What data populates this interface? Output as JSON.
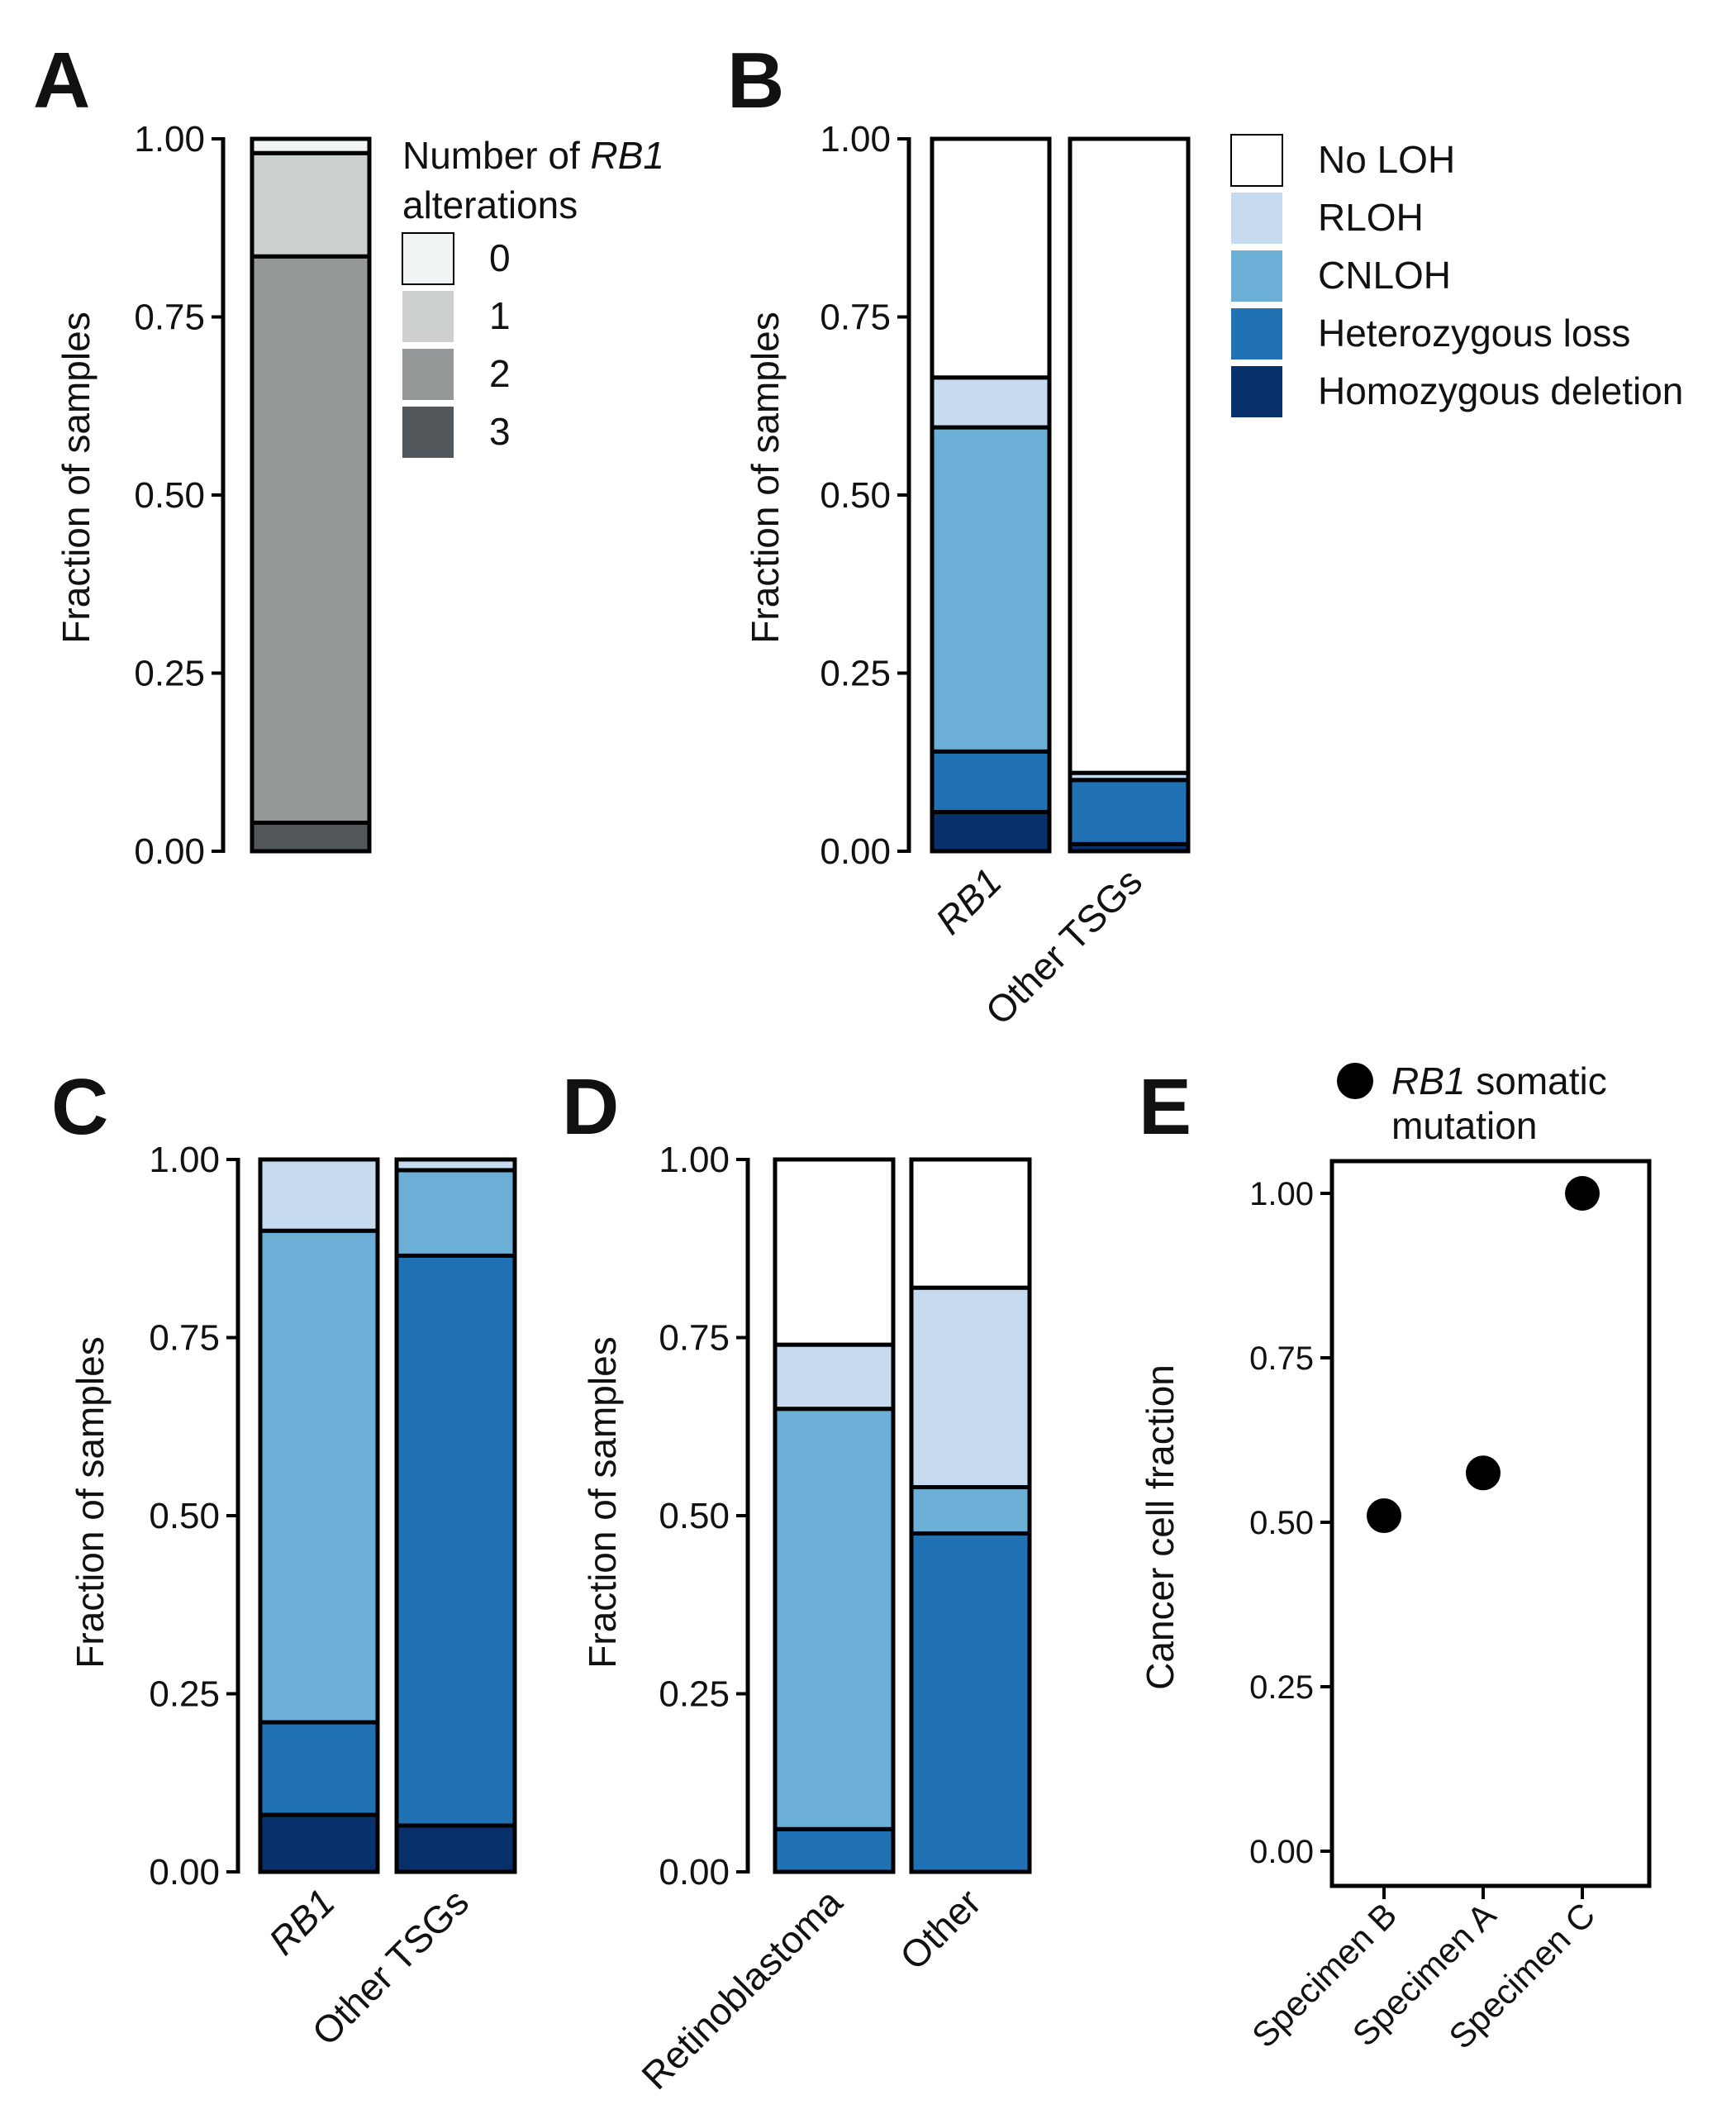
{
  "colors": {
    "no_loh": "#ffffff",
    "rloh": "#c6dbef",
    "cnloh": "#6baed6",
    "het_loss": "#2171b5",
    "hom_del": "#08306b",
    "alt0": "#f0f4f5",
    "alt1": "#cdd0d1",
    "alt2": "#949899",
    "alt3": "#50565a",
    "border": "#000000",
    "point": "#000000"
  },
  "chart_data": [
    {
      "panel": "A",
      "type": "bar",
      "stacked": true,
      "ylabel": "Fraction of samples",
      "ylim": [
        0,
        1
      ],
      "yticks": [
        "0.00",
        "0.25",
        "0.50",
        "0.75",
        "1.00"
      ],
      "categories": [
        ""
      ],
      "legend_title_pre": "Number of ",
      "legend_title_italic": "RB1",
      "legend_title_post": "alterations",
      "series": [
        {
          "name": "3",
          "color": "alt3",
          "values": [
            0.04
          ]
        },
        {
          "name": "2",
          "color": "alt2",
          "values": [
            0.795
          ]
        },
        {
          "name": "1",
          "color": "alt1",
          "values": [
            0.145
          ]
        },
        {
          "name": "0",
          "color": "alt0",
          "values": [
            0.02
          ]
        }
      ]
    },
    {
      "panel": "B",
      "type": "bar",
      "stacked": true,
      "ylabel": "Fraction of samples",
      "ylim": [
        0,
        1
      ],
      "yticks": [
        "0.00",
        "0.25",
        "0.50",
        "0.75",
        "1.00"
      ],
      "categories": [
        "RB1",
        "Other TSGs"
      ],
      "italic_categories": [
        "RB1"
      ],
      "legend": [
        "No LOH",
        "RLOH",
        "CNLOH",
        "Heterozygous loss",
        "Homozygous deletion"
      ],
      "series": [
        {
          "name": "Homozygous deletion",
          "color": "hom_del",
          "values": [
            0.055,
            0.01
          ]
        },
        {
          "name": "Heterozygous loss",
          "color": "het_loss",
          "values": [
            0.085,
            0.09
          ]
        },
        {
          "name": "CNLOH",
          "color": "cnloh",
          "values": [
            0.455,
            0.0
          ]
        },
        {
          "name": "RLOH",
          "color": "rloh",
          "values": [
            0.07,
            0.01
          ]
        },
        {
          "name": "No LOH",
          "color": "no_loh",
          "values": [
            0.335,
            0.89
          ]
        }
      ]
    },
    {
      "panel": "C",
      "type": "bar",
      "stacked": true,
      "ylabel": "Fraction of samples",
      "ylim": [
        0,
        1
      ],
      "yticks": [
        "0.00",
        "0.25",
        "0.50",
        "0.75",
        "1.00"
      ],
      "categories": [
        "RB1",
        "Other TSGs"
      ],
      "italic_categories": [
        "RB1"
      ],
      "series": [
        {
          "name": "Homozygous deletion",
          "color": "hom_del",
          "values": [
            0.08,
            0.065
          ]
        },
        {
          "name": "Heterozygous loss",
          "color": "het_loss",
          "values": [
            0.13,
            0.8
          ]
        },
        {
          "name": "CNLOH",
          "color": "cnloh",
          "values": [
            0.69,
            0.12
          ]
        },
        {
          "name": "RLOH",
          "color": "rloh",
          "values": [
            0.1,
            0.015
          ]
        }
      ]
    },
    {
      "panel": "D",
      "type": "bar",
      "stacked": true,
      "ylabel": "Fraction of samples",
      "ylim": [
        0,
        1
      ],
      "yticks": [
        "0.00",
        "0.25",
        "0.50",
        "0.75",
        "1.00"
      ],
      "categories": [
        "Retinoblastoma",
        "Other"
      ],
      "italic_categories": [],
      "series": [
        {
          "name": "Heterozygous loss",
          "color": "het_loss",
          "values": [
            0.06,
            0.475
          ]
        },
        {
          "name": "CNLOH",
          "color": "cnloh",
          "values": [
            0.59,
            0.065
          ]
        },
        {
          "name": "RLOH",
          "color": "rloh",
          "values": [
            0.09,
            0.28
          ]
        },
        {
          "name": "No LOH",
          "color": "no_loh",
          "values": [
            0.26,
            0.18
          ]
        }
      ]
    },
    {
      "panel": "E",
      "type": "scatter",
      "ylabel": "Cancer cell fraction",
      "ylim": [
        -0.05,
        1.05
      ],
      "yticks": [
        "0.00",
        "0.25",
        "0.50",
        "0.75",
        "1.00"
      ],
      "categories": [
        "Specimen B",
        "Specimen A",
        "Specimen C"
      ],
      "values": [
        0.51,
        0.575,
        1.0
      ],
      "legend_italic": "RB1",
      "legend_line1_rest": " somatic",
      "legend_line2": "mutation"
    }
  ]
}
